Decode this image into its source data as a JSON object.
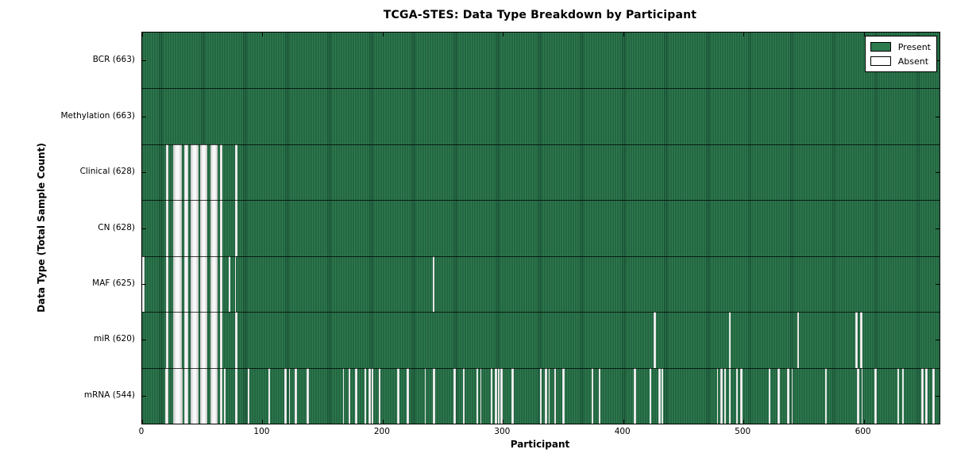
{
  "chart_data": {
    "type": "heatmap",
    "title": "TCGA-STES: Data Type Breakdown by Participant",
    "xlabel": "Participant",
    "ylabel": "Data Type (Total Sample Count)",
    "x_range": [
      0,
      663
    ],
    "x_ticks": [
      0,
      100,
      200,
      300,
      400,
      500,
      600
    ],
    "n_participants": 663,
    "grid": false,
    "legend_position": "upper right",
    "colors": {
      "present_fill": "#2e7b4f",
      "present_edge": "#1a5136",
      "absent_fill": "#f5f5f5",
      "frame": "#000000",
      "background": "#ffffff"
    },
    "legend": [
      {
        "label": "Present",
        "color": "#2e7b4f"
      },
      {
        "label": "Absent",
        "color": "#ffffff"
      }
    ],
    "rows": [
      {
        "name": "BCR",
        "label": "BCR (663)",
        "present_count": 663,
        "absent_count": 0,
        "absent_ranges": []
      },
      {
        "name": "Methylation",
        "label": "Methylation (663)",
        "present_count": 663,
        "absent_count": 0,
        "absent_ranges": []
      },
      {
        "name": "Clinical",
        "label": "Clinical (628)",
        "present_count": 628,
        "absent_count": 35,
        "absent_ranges": [
          [
            20,
            21
          ],
          [
            26,
            32
          ],
          [
            35,
            37
          ],
          [
            40,
            46
          ],
          [
            48,
            53
          ],
          [
            57,
            62
          ],
          [
            65,
            66
          ],
          [
            77,
            78
          ]
        ]
      },
      {
        "name": "CN",
        "label": "CN (628)",
        "present_count": 628,
        "absent_count": 35,
        "absent_ranges": [
          [
            20,
            21
          ],
          [
            26,
            32
          ],
          [
            35,
            37
          ],
          [
            40,
            46
          ],
          [
            48,
            53
          ],
          [
            57,
            62
          ],
          [
            65,
            66
          ],
          [
            77,
            78
          ]
        ]
      },
      {
        "name": "MAF",
        "label": "MAF (625)",
        "present_count": 625,
        "absent_count": 38,
        "absent_ranges": [
          [
            0,
            1
          ],
          [
            20,
            21
          ],
          [
            26,
            32
          ],
          [
            35,
            37
          ],
          [
            40,
            46
          ],
          [
            48,
            53
          ],
          [
            57,
            62
          ],
          [
            65,
            66
          ],
          [
            72,
            72
          ],
          [
            77,
            77
          ],
          [
            242,
            242
          ]
        ]
      },
      {
        "name": "miR",
        "label": "miR (620)",
        "present_count": 620,
        "absent_count": 43,
        "absent_ranges": [
          [
            20,
            21
          ],
          [
            26,
            32
          ],
          [
            35,
            37
          ],
          [
            40,
            46
          ],
          [
            48,
            53
          ],
          [
            57,
            62
          ],
          [
            65,
            66
          ],
          [
            77,
            78
          ],
          [
            425,
            426
          ],
          [
            488,
            488
          ],
          [
            545,
            545
          ],
          [
            593,
            594
          ],
          [
            597,
            598
          ]
        ]
      },
      {
        "name": "mRNA",
        "label": "mRNA (544)",
        "present_count": 544,
        "absent_count": 119,
        "absent_ranges": [
          [
            19,
            21
          ],
          [
            26,
            33
          ],
          [
            35,
            37
          ],
          [
            40,
            46
          ],
          [
            48,
            53
          ],
          [
            57,
            62
          ],
          [
            65,
            66
          ],
          [
            68,
            68
          ],
          [
            77,
            78
          ],
          [
            88,
            88
          ],
          [
            105,
            105
          ],
          [
            118,
            119
          ],
          [
            122,
            122
          ],
          [
            127,
            128
          ],
          [
            137,
            138
          ],
          [
            167,
            167
          ],
          [
            172,
            172
          ],
          [
            177,
            178
          ],
          [
            185,
            185
          ],
          [
            188,
            189
          ],
          [
            191,
            191
          ],
          [
            197,
            197
          ],
          [
            212,
            213
          ],
          [
            220,
            221
          ],
          [
            235,
            235
          ],
          [
            242,
            243
          ],
          [
            259,
            260
          ],
          [
            267,
            267
          ],
          [
            278,
            278
          ],
          [
            281,
            281
          ],
          [
            290,
            290
          ],
          [
            293,
            294
          ],
          [
            296,
            296
          ],
          [
            298,
            299
          ],
          [
            307,
            308
          ],
          [
            331,
            331
          ],
          [
            335,
            336
          ],
          [
            338,
            338
          ],
          [
            343,
            343
          ],
          [
            349,
            350
          ],
          [
            374,
            374
          ],
          [
            380,
            380
          ],
          [
            409,
            410
          ],
          [
            422,
            422
          ],
          [
            429,
            430
          ],
          [
            432,
            432
          ],
          [
            478,
            478
          ],
          [
            481,
            482
          ],
          [
            484,
            484
          ],
          [
            488,
            488
          ],
          [
            494,
            494
          ],
          [
            497,
            498
          ],
          [
            521,
            521
          ],
          [
            528,
            529
          ],
          [
            536,
            537
          ],
          [
            540,
            540
          ],
          [
            568,
            568
          ],
          [
            594,
            595
          ],
          [
            598,
            598
          ],
          [
            609,
            610
          ],
          [
            628,
            628
          ],
          [
            632,
            632
          ],
          [
            648,
            649
          ],
          [
            651,
            652
          ],
          [
            657,
            658
          ]
        ]
      }
    ]
  }
}
